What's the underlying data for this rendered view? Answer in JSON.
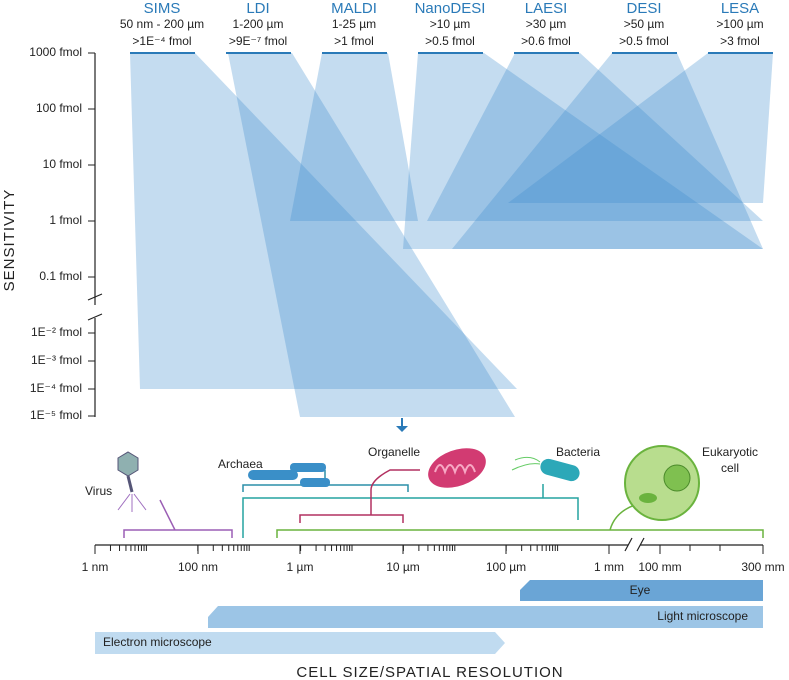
{
  "y_axis": {
    "title": "SENSITIVITY",
    "labels": [
      "1000 fmol",
      "100 fmol",
      "10 fmol",
      "1 fmol",
      "0.1 fmol",
      "1E⁻² fmol",
      "1E⁻³ fmol",
      "1E⁻⁴ fmol",
      "1E⁻⁵ fmol"
    ]
  },
  "techniques": [
    {
      "name": "SIMS",
      "resolution": "50 nm - 200 µm",
      "sensitivity": ">1E⁻⁴ fmol"
    },
    {
      "name": "LDI",
      "resolution": "1-200 µm",
      "sensitivity": ">9E⁻⁷ fmol"
    },
    {
      "name": "MALDI",
      "resolution": "1-25 µm",
      "sensitivity": ">1 fmol"
    },
    {
      "name": "NanoDESI",
      "resolution": ">10 µm",
      "sensitivity": ">0.5 fmol"
    },
    {
      "name": "LAESI",
      "resolution": ">30 µm",
      "sensitivity": ">0.6 fmol"
    },
    {
      "name": "DESI",
      "resolution": ">50 µm",
      "sensitivity": ">0.5 fmol"
    },
    {
      "name": "LESA",
      "resolution": ">100 µm",
      "sensitivity": ">3 fmol"
    }
  ],
  "organisms": {
    "virus": "Virus",
    "archaea": "Archaea",
    "organelle": "Organelle",
    "bacteria": "Bacteria",
    "eukaryotic": [
      "Eukaryotic",
      "cell"
    ]
  },
  "x_axis": {
    "title": "CELL SIZE/SPATIAL RESOLUTION",
    "labels": [
      "1 nm",
      "100 nm",
      "1 µm",
      "10 µm",
      "100 µm",
      "1 mm",
      "100 mm",
      "300 mm"
    ]
  },
  "instruments": [
    "Eye",
    "Light microscope",
    "Electron microscope"
  ]
}
